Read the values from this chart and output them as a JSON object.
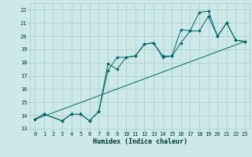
{
  "title": "",
  "xlabel": "Humidex (Indice chaleur)",
  "bg_color": "#cce8e8",
  "grid_color": "#aacccc",
  "line_color": "#006666",
  "xlim": [
    -0.5,
    23.5
  ],
  "ylim": [
    13,
    22.5
  ],
  "xticks": [
    0,
    1,
    2,
    3,
    4,
    5,
    6,
    7,
    8,
    9,
    10,
    11,
    12,
    13,
    14,
    15,
    16,
    17,
    18,
    19,
    20,
    21,
    22,
    23
  ],
  "yticks": [
    13,
    14,
    15,
    16,
    17,
    18,
    19,
    20,
    21,
    22
  ],
  "line1_x": [
    0,
    1,
    3,
    4,
    5,
    6,
    7,
    8,
    9,
    10,
    11,
    12,
    13,
    14,
    15,
    16,
    17,
    18,
    19,
    20,
    21,
    22,
    23
  ],
  "line1_y": [
    13.7,
    14.1,
    13.6,
    14.1,
    14.1,
    13.6,
    14.3,
    17.4,
    18.4,
    18.4,
    18.5,
    19.4,
    19.5,
    18.4,
    18.5,
    19.5,
    20.4,
    20.4,
    21.5,
    20.0,
    21.0,
    19.7,
    19.6
  ],
  "line2_x": [
    0,
    1,
    3,
    4,
    5,
    6,
    7,
    8,
    9,
    10,
    11,
    12,
    13,
    14,
    15,
    16,
    17,
    18,
    19,
    20,
    21,
    22,
    23
  ],
  "line2_y": [
    13.7,
    14.1,
    13.6,
    14.1,
    14.1,
    13.6,
    14.3,
    17.9,
    17.5,
    18.4,
    18.5,
    19.4,
    19.5,
    18.5,
    18.5,
    20.5,
    20.4,
    21.8,
    21.9,
    20.0,
    21.0,
    19.7,
    19.6
  ],
  "line3_x": [
    0,
    23
  ],
  "line3_y": [
    13.7,
    19.6
  ]
}
